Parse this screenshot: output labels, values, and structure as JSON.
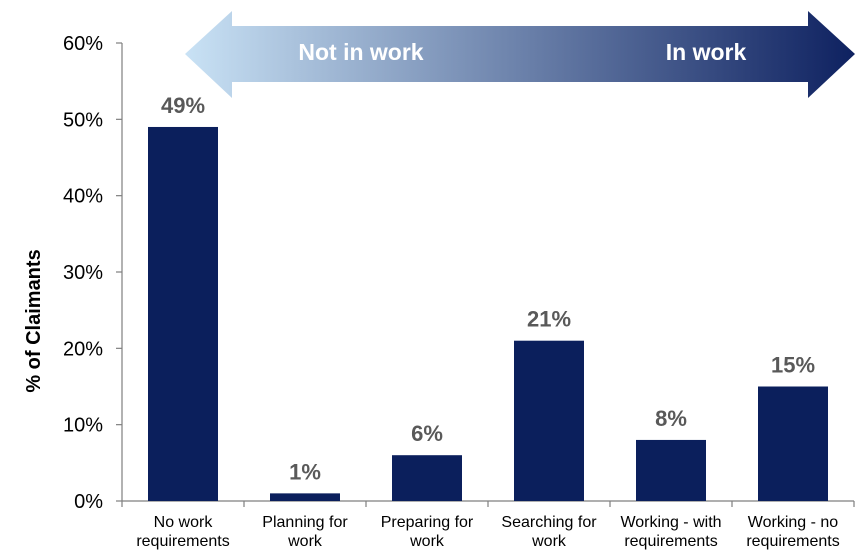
{
  "chart_data": {
    "type": "bar",
    "categories": [
      [
        "No work",
        "requirements"
      ],
      [
        "Planning for",
        "work"
      ],
      [
        "Preparing for",
        "work"
      ],
      [
        "Searching for",
        "work"
      ],
      [
        "Working - with",
        "requirements"
      ],
      [
        "Working - no",
        "requirements"
      ]
    ],
    "values": [
      49,
      1,
      6,
      21,
      8,
      15
    ],
    "data_labels": [
      "49%",
      "1%",
      "6%",
      "21%",
      "8%",
      "15%"
    ],
    "ylabel": "% of Claimants",
    "ylim": [
      0,
      60
    ],
    "yticks": [
      "0%",
      "10%",
      "20%",
      "30%",
      "40%",
      "50%",
      "60%"
    ],
    "grid": false,
    "bar_color": "#0B1F5C",
    "arrow": {
      "left_label": "Not in work",
      "right_label": "In work",
      "color_start": "#C9E2F5",
      "color_end": "#0E2160"
    }
  }
}
